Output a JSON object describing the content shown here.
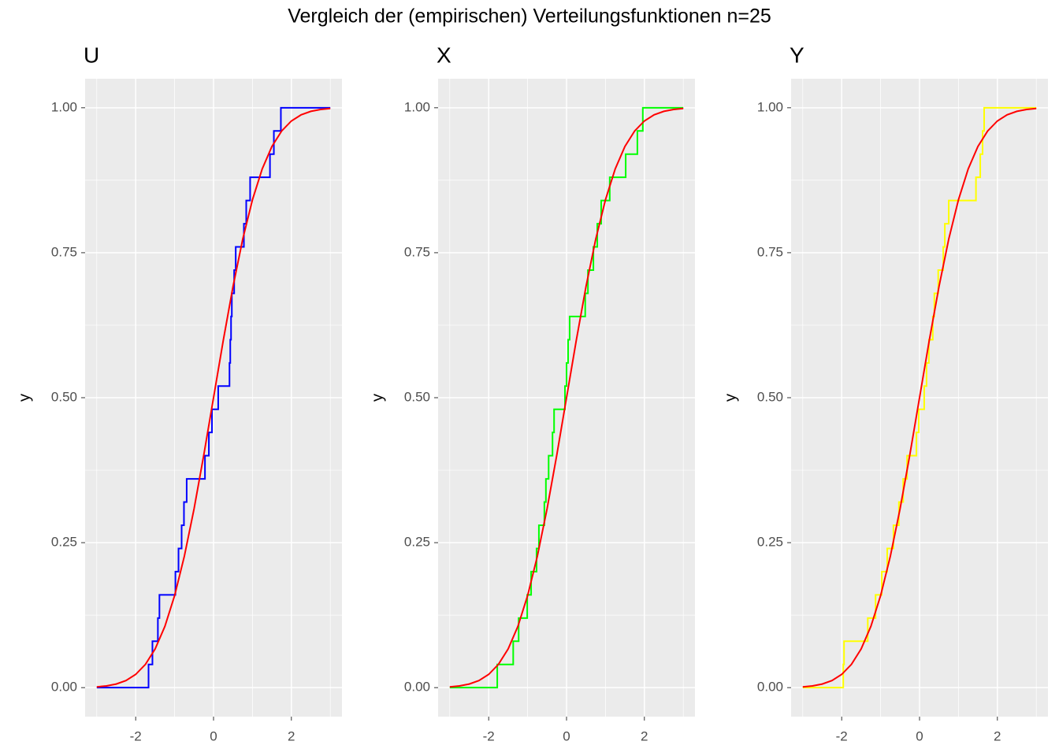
{
  "title": "Vergleich der (empirischen) Verteilungsfunktionen n=25",
  "chart_data": [
    {
      "type": "line",
      "title": "U",
      "y_label": "y",
      "xlim": [
        -3.3,
        3.3
      ],
      "ylim": [
        -0.05,
        1.05
      ],
      "xticks": [
        -2,
        0,
        2
      ],
      "yticks": [
        {
          "value": 0,
          "label": "0.00"
        },
        {
          "value": 0.25,
          "label": "0.25"
        },
        {
          "value": 0.5,
          "label": "0.50"
        },
        {
          "value": 0.75,
          "label": "0.75"
        },
        {
          "value": 1,
          "label": "1.00"
        }
      ],
      "grid": true,
      "minor_grid": true,
      "series": [
        {
          "color": "#0000ff",
          "step": "post",
          "x": [
            -3,
            -1.67,
            -1.57,
            -1.43,
            -1.39,
            -0.98,
            -0.9,
            -0.82,
            -0.76,
            -0.69,
            -0.22,
            -0.12,
            -0.04,
            0.12,
            0.41,
            0.43,
            0.45,
            0.47,
            0.53,
            0.57,
            0.78,
            0.84,
            0.94,
            1.45,
            1.55,
            1.73,
            3
          ],
          "values": [
            0,
            0.04,
            0.08,
            0.12,
            0.16,
            0.2,
            0.24,
            0.28,
            0.32,
            0.36,
            0.4,
            0.44,
            0.48,
            0.52,
            0.56,
            0.6,
            0.64,
            0.68,
            0.72,
            0.76,
            0.8,
            0.84,
            0.88,
            0.92,
            0.96,
            1,
            1
          ]
        },
        {
          "color": "#ff0000",
          "x": [
            -3,
            -2.75,
            -2.5,
            -2.25,
            -2,
            -1.75,
            -1.5,
            -1.25,
            -1,
            -0.75,
            -0.5,
            -0.25,
            0,
            0.25,
            0.5,
            0.75,
            1,
            1.25,
            1.5,
            1.75,
            2,
            2.25,
            2.5,
            2.75,
            3
          ],
          "values": [
            0.0013,
            0.003,
            0.0062,
            0.0122,
            0.0228,
            0.0401,
            0.0668,
            0.1056,
            0.1587,
            0.2266,
            0.3085,
            0.4013,
            0.5,
            0.5987,
            0.6915,
            0.7734,
            0.8413,
            0.8944,
            0.9332,
            0.9599,
            0.9772,
            0.9878,
            0.9938,
            0.997,
            0.9987
          ]
        }
      ]
    },
    {
      "type": "line",
      "title": "X",
      "y_label": "y",
      "xlim": [
        -3.3,
        3.3
      ],
      "ylim": [
        -0.05,
        1.05
      ],
      "xticks": [
        -2,
        0,
        2
      ],
      "yticks": [
        {
          "value": 0,
          "label": "0.00"
        },
        {
          "value": 0.25,
          "label": "0.25"
        },
        {
          "value": 0.5,
          "label": "0.50"
        },
        {
          "value": 0.75,
          "label": "0.75"
        },
        {
          "value": 1,
          "label": "1.00"
        }
      ],
      "grid": true,
      "minor_grid": true,
      "series": [
        {
          "color": "#00ff00",
          "step": "post",
          "x": [
            -3,
            -1.78,
            -1.37,
            -1.23,
            -1.01,
            -0.91,
            -0.77,
            -0.71,
            -0.57,
            -0.53,
            -0.46,
            -0.36,
            -0.32,
            -0.04,
            0,
            0.04,
            0.08,
            0.48,
            0.55,
            0.69,
            0.79,
            0.89,
            1.11,
            1.52,
            1.82,
            1.96,
            3
          ],
          "values": [
            0,
            0.04,
            0.08,
            0.12,
            0.16,
            0.2,
            0.24,
            0.28,
            0.32,
            0.36,
            0.4,
            0.44,
            0.48,
            0.52,
            0.56,
            0.6,
            0.64,
            0.68,
            0.72,
            0.76,
            0.8,
            0.84,
            0.88,
            0.92,
            0.96,
            1,
            1
          ]
        },
        {
          "color": "#ff0000",
          "x": [
            -3,
            -2.75,
            -2.5,
            -2.25,
            -2,
            -1.75,
            -1.5,
            -1.25,
            -1,
            -0.75,
            -0.5,
            -0.25,
            0,
            0.25,
            0.5,
            0.75,
            1,
            1.25,
            1.5,
            1.75,
            2,
            2.25,
            2.5,
            2.75,
            3
          ],
          "values": [
            0.0013,
            0.003,
            0.0062,
            0.0122,
            0.0228,
            0.0401,
            0.0668,
            0.1056,
            0.1587,
            0.2266,
            0.3085,
            0.4013,
            0.5,
            0.5987,
            0.6915,
            0.7734,
            0.8413,
            0.8944,
            0.9332,
            0.9599,
            0.9772,
            0.9878,
            0.9938,
            0.997,
            0.9987
          ]
        }
      ]
    },
    {
      "type": "line",
      "title": "Y",
      "y_label": "y",
      "xlim": [
        -3.3,
        3.3
      ],
      "ylim": [
        -0.05,
        1.05
      ],
      "xticks": [
        -2,
        0,
        2
      ],
      "yticks": [
        {
          "value": 0,
          "label": "0.00"
        },
        {
          "value": 0.25,
          "label": "0.25"
        },
        {
          "value": 0.5,
          "label": "0.50"
        },
        {
          "value": 0.75,
          "label": "0.75"
        },
        {
          "value": 1,
          "label": "1.00"
        }
      ],
      "grid": true,
      "minor_grid": true,
      "series": [
        {
          "color": "#ffff00",
          "step": "post",
          "x": [
            -3,
            -1.96,
            -1.94,
            -1.33,
            -1.13,
            -0.97,
            -0.83,
            -0.67,
            -0.53,
            -0.42,
            -0.32,
            -0.08,
            -0.02,
            0.12,
            0.18,
            0.24,
            0.34,
            0.38,
            0.48,
            0.61,
            0.65,
            0.75,
            1.45,
            1.56,
            1.62,
            1.66,
            3
          ],
          "values": [
            0,
            0.04,
            0.08,
            0.12,
            0.16,
            0.2,
            0.24,
            0.28,
            0.32,
            0.36,
            0.4,
            0.44,
            0.48,
            0.52,
            0.56,
            0.6,
            0.64,
            0.68,
            0.72,
            0.76,
            0.8,
            0.84,
            0.88,
            0.92,
            0.96,
            1,
            1
          ]
        },
        {
          "color": "#ff0000",
          "x": [
            -3,
            -2.75,
            -2.5,
            -2.25,
            -2,
            -1.75,
            -1.5,
            -1.25,
            -1,
            -0.75,
            -0.5,
            -0.25,
            0,
            0.25,
            0.5,
            0.75,
            1,
            1.25,
            1.5,
            1.75,
            2,
            2.25,
            2.5,
            2.75,
            3
          ],
          "values": [
            0.0013,
            0.003,
            0.0062,
            0.0122,
            0.0228,
            0.0401,
            0.0668,
            0.1056,
            0.1587,
            0.2266,
            0.3085,
            0.4013,
            0.5,
            0.5987,
            0.6915,
            0.7734,
            0.8413,
            0.8944,
            0.9332,
            0.9599,
            0.9772,
            0.9878,
            0.9938,
            0.997,
            0.9987
          ]
        }
      ]
    }
  ]
}
